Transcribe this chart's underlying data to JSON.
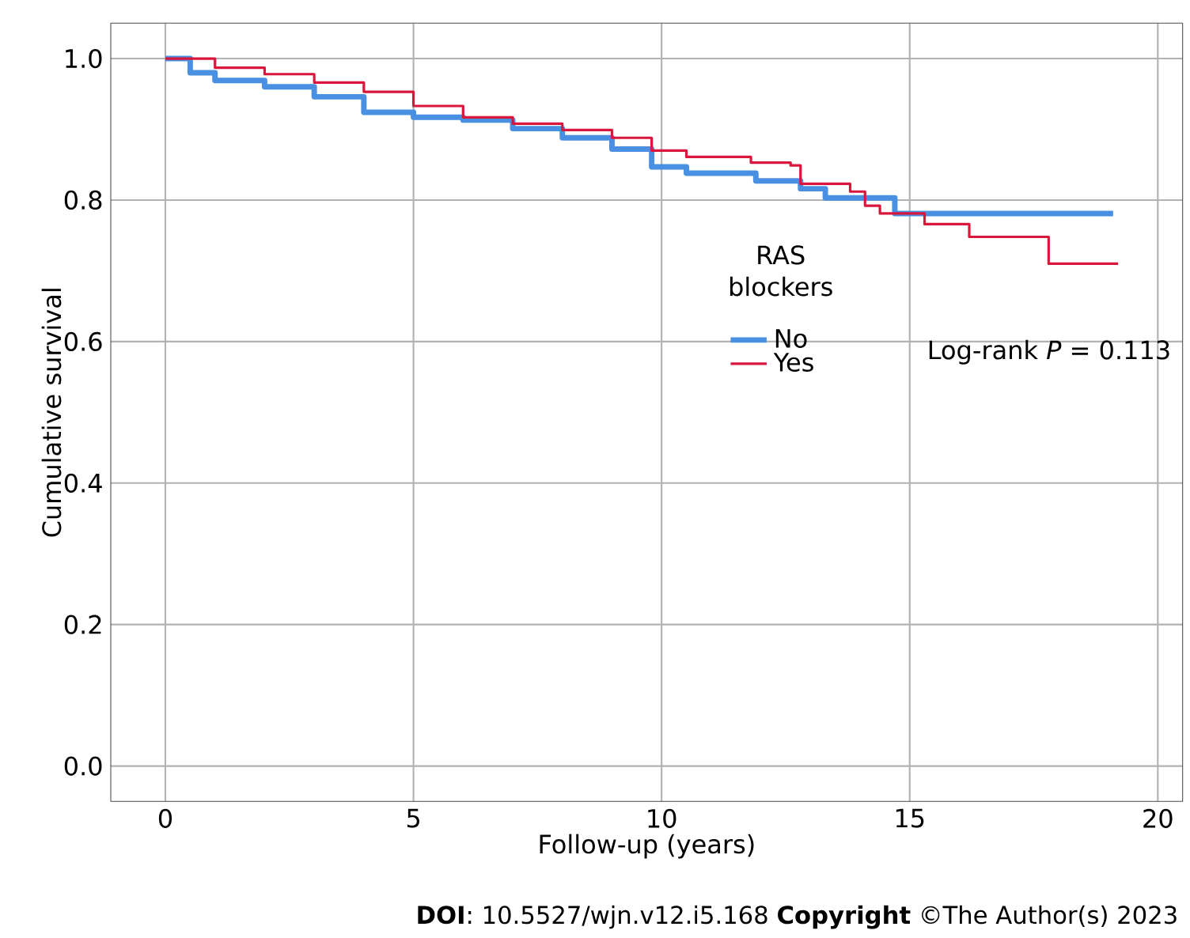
{
  "chart_data": {
    "type": "step",
    "xlabel": "Follow-up (years)",
    "ylabel": "Cumulative survival",
    "legend_title": "RAS blockers",
    "xlim": [
      -1.1,
      20.5
    ],
    "ylim": [
      -0.05,
      1.05
    ],
    "xticks": [
      0,
      5,
      10,
      15,
      20
    ],
    "yticks": [
      {
        "value": 0,
        "label": "0.0"
      },
      0.2,
      0.4,
      0.6,
      0.8,
      {
        "value": 1,
        "label": "1.0"
      }
    ],
    "grid": true,
    "legend": "center right",
    "series": [
      {
        "name": "No",
        "color": "#4a90e2",
        "x": [
          0,
          0.5,
          1,
          2,
          3,
          4,
          5,
          6,
          7,
          8,
          9,
          9.8,
          10.5,
          11.9,
          12.8,
          13.3,
          14.7,
          19.1
        ],
        "values": [
          1.0,
          0.98,
          0.969,
          0.96,
          0.946,
          0.924,
          0.917,
          0.913,
          0.901,
          0.888,
          0.872,
          0.847,
          0.838,
          0.827,
          0.816,
          0.803,
          0.781,
          0.781
        ]
      },
      {
        "name": "Yes",
        "color": "#d9163c",
        "x": [
          0,
          1,
          2,
          3,
          4,
          5,
          6,
          7,
          8,
          9,
          9.8,
          10.5,
          11.8,
          12.6,
          12.8,
          13.8,
          14.1,
          14.4,
          15.3,
          16.2,
          17.8,
          19.2
        ],
        "values": [
          1.0,
          0.987,
          0.978,
          0.966,
          0.953,
          0.933,
          0.917,
          0.908,
          0.899,
          0.888,
          0.87,
          0.861,
          0.853,
          0.849,
          0.823,
          0.812,
          0.792,
          0.781,
          0.766,
          0.748,
          0.71,
          0.71
        ]
      }
    ],
    "annotations": [
      "Log-rank *P* = 0.113",
      "**DOI**: 10.5527/wjn.v12.i5.168 **Copyright** ©The Author(s) 2023"
    ]
  }
}
